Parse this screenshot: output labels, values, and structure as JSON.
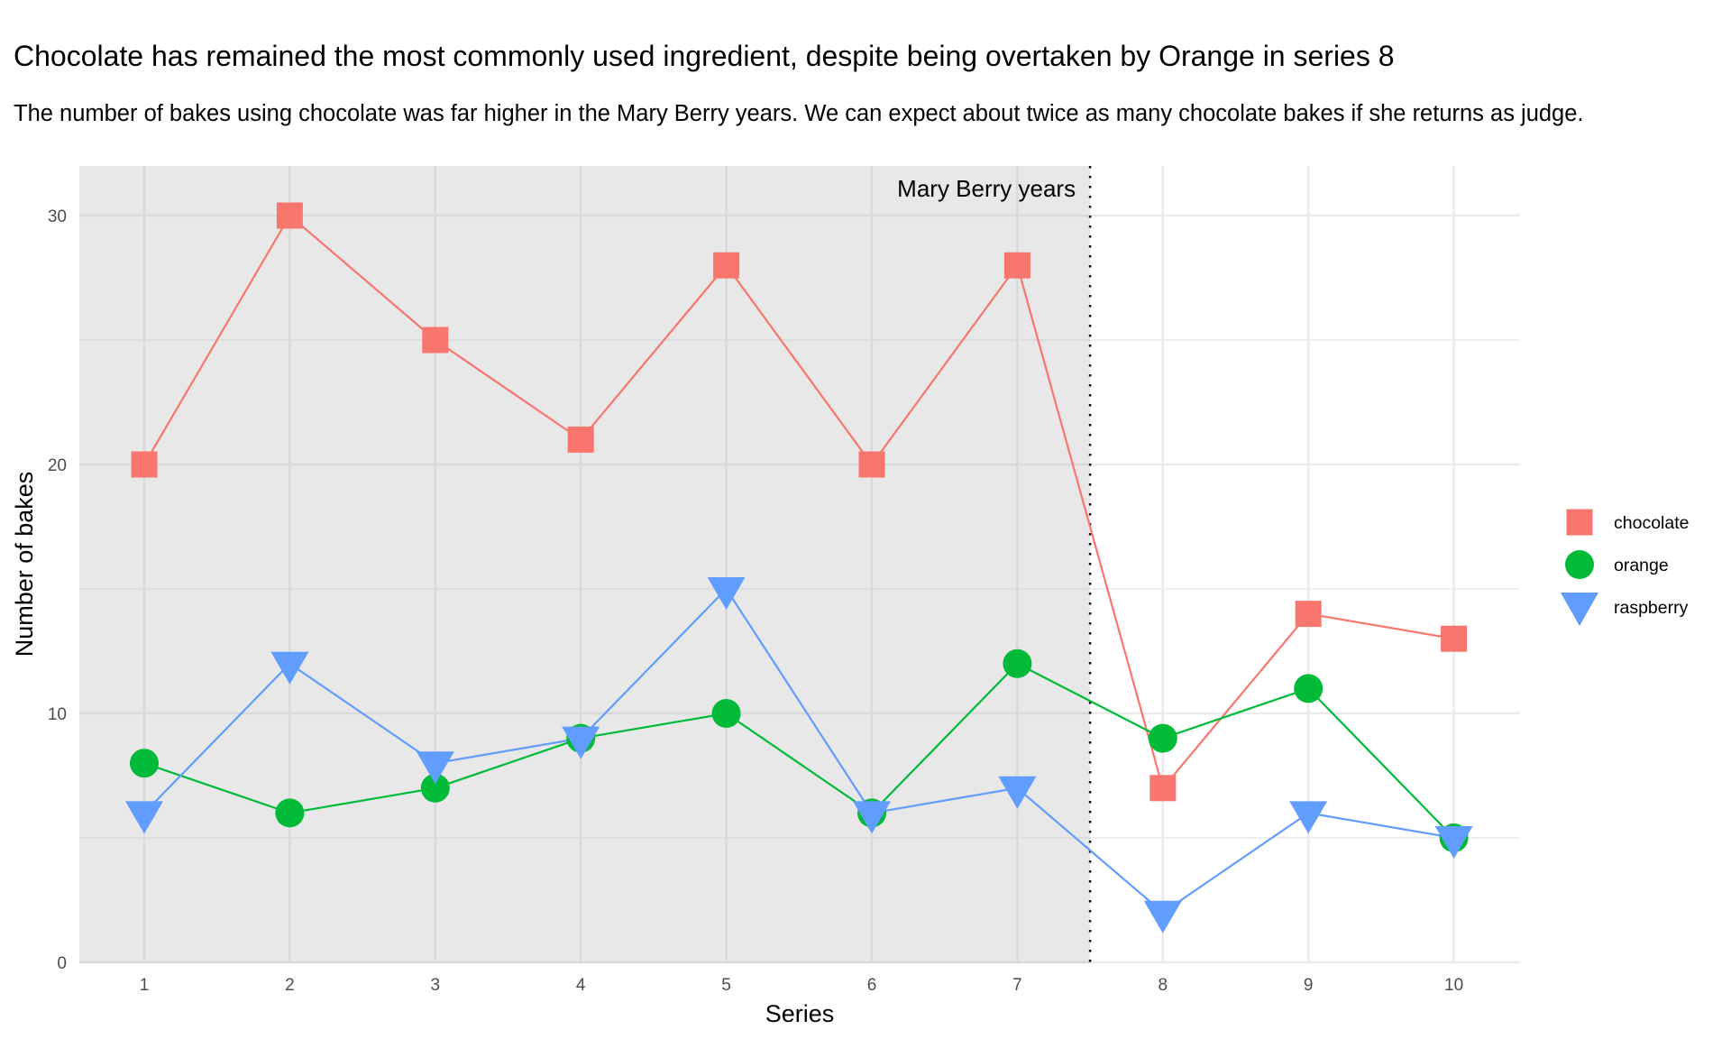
{
  "chart_data": {
    "type": "line",
    "title": "Chocolate has remained the most commonly used ingredient, despite being overtaken by Orange in series 8",
    "subtitle": "The number of bakes using chocolate was far higher in the Mary Berry years. We can expect about twice as many chocolate bakes if she returns as judge.",
    "xlabel": "Series",
    "ylabel": "Number of bakes",
    "x": [
      1,
      2,
      3,
      4,
      5,
      6,
      7,
      8,
      9,
      10
    ],
    "x_tick_labels": [
      "1",
      "2",
      "3",
      "4",
      "5",
      "6",
      "7",
      "8",
      "9",
      "10"
    ],
    "y_ticks": [
      0,
      10,
      20,
      30
    ],
    "y_tick_labels": [
      "0",
      "10",
      "20",
      "30"
    ],
    "xlim": [
      0.55,
      10.45
    ],
    "ylim": [
      0,
      31
    ],
    "grid": true,
    "series": [
      {
        "name": "chocolate",
        "color": "#F8766D",
        "marker": "square",
        "values": [
          20,
          30,
          25,
          21,
          28,
          20,
          28,
          7,
          14,
          13
        ]
      },
      {
        "name": "orange",
        "color": "#00BA38",
        "marker": "circle",
        "values": [
          8,
          6,
          7,
          9,
          10,
          6,
          12,
          9,
          11,
          5
        ]
      },
      {
        "name": "raspberry",
        "color": "#619CFF",
        "marker": "triangle-down",
        "values": [
          6,
          12,
          8,
          9,
          15,
          6,
          7,
          2,
          6,
          5
        ]
      }
    ],
    "shaded_region": {
      "x_from": 0.55,
      "x_to": 7.5,
      "color": "#E8E8E8"
    },
    "vline": {
      "x": 7.5,
      "style": "dotted",
      "color": "#000000"
    },
    "annotation": {
      "text": "Mary Berry years",
      "x": 7.5,
      "y": 30.5
    },
    "legend": {
      "position": "right",
      "entries": [
        "chocolate",
        "orange",
        "raspberry"
      ]
    }
  }
}
